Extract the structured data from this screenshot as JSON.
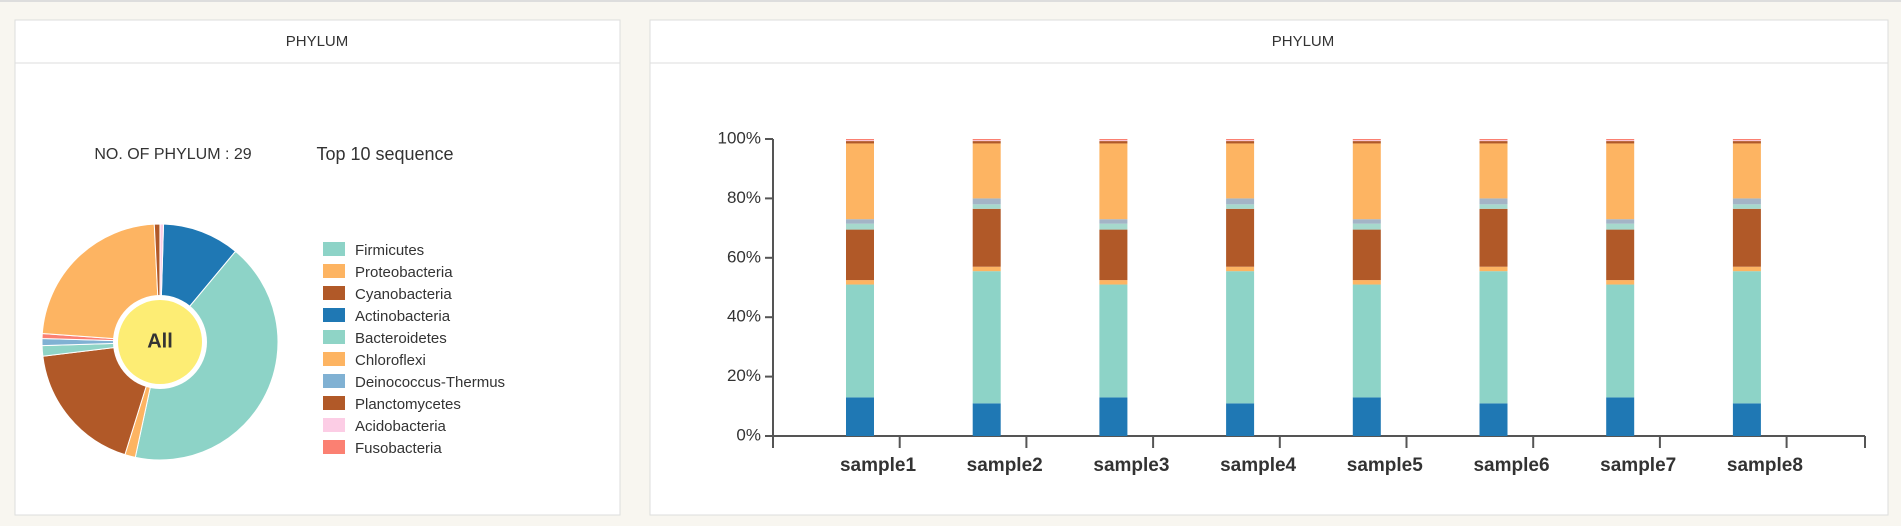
{
  "left_panel": {
    "header": "PHYLUM",
    "count_label": "NO. OF PHYLUM : 29",
    "sequence_label": "Top 10 sequence",
    "chart_data": {
      "type": "pie",
      "center_label": "All",
      "categories": [
        "Firmicutes",
        "Proteobacteria",
        "Cyanobacteria",
        "Actinobacteria",
        "Bacteroidetes",
        "Chloroflexi",
        "Deinococcus-Thermus",
        "Planctomycetes",
        "Acidobacteria",
        "Fusobacteria"
      ],
      "values": [
        44,
        24,
        19,
        11,
        1.5,
        1.5,
        1,
        0.8,
        0.5,
        0.7
      ],
      "colors": [
        "#8dd3c7",
        "#fdb462",
        "#b15928",
        "#1f78b4",
        "#8fd4c6",
        "#fdb462",
        "#80b1d3",
        "#b15928",
        "#fccde5",
        "#fb8072"
      ]
    }
  },
  "right_panel": {
    "header": "PHYLUM",
    "chart_data": {
      "type": "bar",
      "stacked": true,
      "categories": [
        "sample1",
        "sample2",
        "sample3",
        "sample4",
        "sample5",
        "sample6",
        "sample7",
        "sample8"
      ],
      "ylim": [
        0,
        100
      ],
      "yticks": [
        {
          "value": 0,
          "label": "0%"
        },
        {
          "value": 20,
          "label": "20%"
        },
        {
          "value": 40,
          "label": "40%"
        },
        {
          "value": 60,
          "label": "60%"
        },
        {
          "value": 80,
          "label": "80%"
        },
        {
          "value": 100,
          "label": "100%"
        }
      ],
      "series": [
        {
          "name": "Actinobacteria",
          "color": "#1f78b4",
          "values": [
            13,
            11,
            13,
            11,
            13,
            11,
            13,
            11
          ]
        },
        {
          "name": "Firmicutes",
          "color": "#8dd3c7",
          "values": [
            38,
            44.5,
            38,
            44.5,
            38,
            44.5,
            38,
            44.5
          ]
        },
        {
          "name": "Chloroflexi",
          "color": "#fdb462",
          "values": [
            1.5,
            1.5,
            1.5,
            1.5,
            1.5,
            1.5,
            1.5,
            1.5
          ]
        },
        {
          "name": "Cyanobacteria",
          "color": "#b15928",
          "values": [
            17,
            19.5,
            17,
            19.5,
            17,
            19.5,
            17,
            19.5
          ]
        },
        {
          "name": "Bacteroidetes",
          "color": "#a6d8cc",
          "values": [
            2,
            1.5,
            2,
            1.5,
            2,
            1.5,
            2,
            1.5
          ]
        },
        {
          "name": "Deinococcus-Thermus",
          "color": "#a3b4c6",
          "values": [
            1.5,
            2,
            1.5,
            2,
            1.5,
            2,
            1.5,
            2
          ]
        },
        {
          "name": "Proteobacteria",
          "color": "#fdb462",
          "values": [
            25.5,
            18.5,
            25.5,
            18.5,
            25.5,
            18.5,
            25.5,
            18.5
          ]
        },
        {
          "name": "Planctomycetes",
          "color": "#b15928",
          "values": [
            0.8,
            0.8,
            0.8,
            0.8,
            0.8,
            0.8,
            0.8,
            0.8
          ]
        },
        {
          "name": "Acidobacteria",
          "color": "#fccde5",
          "values": [
            0.3,
            0.3,
            0.3,
            0.3,
            0.3,
            0.3,
            0.3,
            0.3
          ]
        },
        {
          "name": "Fusobacteria",
          "color": "#fb8072",
          "values": [
            0.4,
            0.4,
            0.4,
            0.4,
            0.4,
            0.4,
            0.4,
            0.4
          ]
        }
      ]
    }
  }
}
